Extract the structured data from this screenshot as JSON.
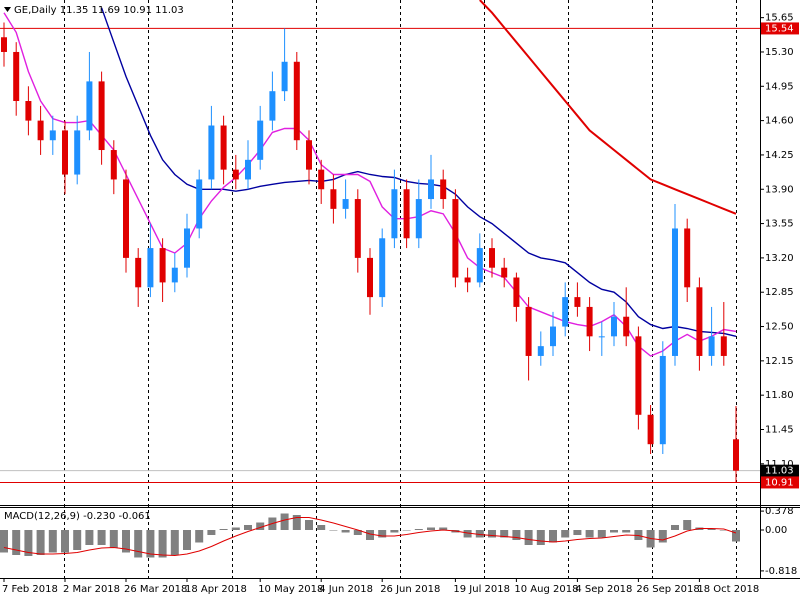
{
  "chart_data": [
    {
      "type": "candlestick",
      "title": "GE,Daily 11.35 11.69 10.91 11.03",
      "categories": [
        "7 Feb 2018",
        null,
        null,
        null,
        null,
        "2 Mar 2018",
        null,
        null,
        null,
        null,
        "26 Mar 2018",
        null,
        null,
        null,
        null,
        "18 Apr 2018",
        null,
        null,
        null,
        null,
        null,
        "10 May 2018",
        null,
        null,
        null,
        null,
        "4 Jun 2018",
        null,
        null,
        null,
        null,
        "26 Jun 2018",
        null,
        null,
        null,
        null,
        null,
        "19 Jul 2018",
        null,
        null,
        null,
        null,
        "10 Aug 2018",
        null,
        null,
        null,
        null,
        "4 Sep 2018",
        null,
        null,
        null,
        null,
        "26 Sep 2018",
        null,
        null,
        null,
        null,
        "18 Oct 2018",
        null,
        null,
        null
      ],
      "open": [
        15.45,
        15.3,
        14.8,
        14.6,
        14.4,
        14.5,
        14.05,
        14.5,
        15.0,
        14.3,
        14.0,
        13.2,
        12.9,
        13.3,
        12.95,
        13.1,
        13.5,
        14.0,
        14.55,
        14.1,
        14.0,
        14.2,
        14.6,
        14.9,
        15.2,
        14.4,
        14.1,
        13.9,
        13.7,
        13.8,
        13.2,
        12.8,
        13.4,
        13.9,
        13.4,
        13.8,
        14.0,
        13.8,
        13.0,
        12.95,
        13.3,
        13.1,
        13.0,
        12.7,
        12.2,
        12.3,
        12.5,
        12.8,
        12.7,
        12.4,
        12.4,
        12.6,
        12.4,
        11.6,
        11.3,
        12.2,
        13.5,
        12.9,
        12.2,
        12.4,
        11.35
      ],
      "high": [
        15.6,
        15.4,
        14.95,
        14.75,
        14.65,
        14.6,
        14.65,
        15.3,
        15.1,
        14.4,
        14.1,
        13.3,
        13.55,
        13.4,
        13.25,
        13.65,
        14.1,
        14.75,
        14.65,
        14.25,
        14.4,
        14.75,
        15.1,
        15.54,
        15.3,
        14.5,
        14.2,
        14.05,
        14.0,
        13.9,
        13.3,
        13.5,
        14.1,
        14.0,
        14.0,
        14.25,
        14.1,
        13.9,
        13.1,
        13.45,
        13.4,
        13.2,
        13.05,
        12.8,
        12.45,
        12.65,
        12.95,
        12.95,
        12.8,
        12.55,
        12.75,
        12.9,
        12.5,
        11.7,
        12.35,
        13.75,
        13.6,
        13.0,
        12.7,
        12.75,
        11.69
      ],
      "low": [
        15.15,
        14.65,
        14.45,
        14.25,
        14.25,
        13.85,
        13.95,
        14.4,
        14.15,
        13.85,
        13.05,
        12.7,
        12.8,
        12.75,
        12.85,
        13.0,
        13.4,
        13.9,
        13.95,
        13.9,
        13.9,
        14.1,
        14.5,
        14.8,
        14.3,
        13.95,
        13.75,
        13.55,
        13.6,
        13.05,
        12.62,
        12.7,
        13.3,
        13.3,
        13.3,
        13.7,
        13.7,
        12.9,
        12.85,
        12.9,
        13.0,
        12.9,
        12.55,
        11.95,
        12.1,
        12.2,
        12.4,
        12.6,
        12.25,
        12.2,
        12.3,
        12.3,
        11.45,
        11.2,
        11.2,
        12.1,
        12.75,
        12.05,
        12.1,
        12.1,
        10.91
      ],
      "close": [
        15.3,
        14.8,
        14.6,
        14.4,
        14.5,
        14.05,
        14.5,
        15.0,
        14.3,
        14.0,
        13.2,
        12.9,
        13.3,
        12.95,
        13.1,
        13.5,
        14.0,
        14.55,
        14.1,
        14.0,
        14.2,
        14.6,
        14.9,
        15.2,
        14.4,
        14.1,
        13.9,
        13.7,
        13.8,
        13.2,
        12.8,
        13.4,
        13.9,
        13.4,
        13.8,
        14.0,
        13.8,
        13.0,
        12.95,
        13.3,
        13.1,
        13.0,
        12.7,
        12.2,
        12.3,
        12.5,
        12.8,
        12.7,
        12.4,
        12.4,
        12.6,
        12.4,
        11.6,
        11.3,
        12.2,
        13.5,
        12.9,
        12.2,
        12.4,
        12.2,
        11.03
      ],
      "up_color": "#1e90ff",
      "down_color": "#e00000",
      "series": [
        {
          "color": "#e00000",
          "values": [
            null,
            null,
            null,
            null,
            null,
            null,
            null,
            null,
            null,
            null,
            null,
            null,
            null,
            null,
            null,
            null,
            null,
            null,
            null,
            null,
            null,
            null,
            null,
            null,
            null,
            null,
            null,
            null,
            null,
            null,
            null,
            null,
            null,
            null,
            null,
            null,
            null,
            null,
            null,
            15.83,
            15.7,
            15.55,
            15.4,
            15.25,
            15.1,
            14.95,
            14.8,
            14.65,
            14.5,
            14.4,
            14.3,
            14.2,
            14.1,
            14.0,
            13.95,
            13.9,
            13.85,
            13.8,
            13.75,
            13.7,
            13.65
          ]
        },
        {
          "color": "#0000a0",
          "values": [
            null,
            null,
            null,
            null,
            null,
            null,
            null,
            null,
            15.75,
            15.4,
            15.05,
            14.75,
            14.45,
            14.2,
            14.05,
            13.95,
            13.9,
            13.9,
            13.9,
            13.88,
            13.9,
            13.93,
            13.95,
            13.97,
            13.98,
            13.99,
            13.98,
            14.0,
            14.05,
            14.08,
            14.05,
            14.03,
            14.02,
            13.98,
            13.96,
            13.95,
            13.93,
            13.85,
            13.72,
            13.62,
            13.55,
            13.45,
            13.35,
            13.25,
            13.2,
            13.18,
            13.15,
            13.05,
            12.95,
            12.88,
            12.85,
            12.75,
            12.6,
            12.52,
            12.48,
            12.5,
            12.48,
            12.45,
            12.44,
            12.43,
            12.4
          ]
        },
        {
          "color": "#e020e0",
          "values": [
            15.7,
            15.5,
            15.1,
            14.8,
            14.62,
            14.58,
            14.58,
            14.6,
            14.45,
            14.3,
            14.05,
            13.8,
            13.55,
            13.3,
            13.25,
            13.35,
            13.6,
            13.78,
            13.92,
            14.02,
            14.15,
            14.3,
            14.48,
            14.52,
            14.52,
            14.4,
            14.15,
            14.05,
            14.05,
            14.05,
            13.98,
            13.72,
            13.6,
            13.6,
            13.62,
            13.68,
            13.65,
            13.45,
            13.2,
            13.1,
            13.05,
            13.0,
            12.85,
            12.7,
            12.65,
            12.6,
            12.55,
            12.52,
            12.5,
            12.55,
            12.62,
            12.5,
            12.3,
            12.2,
            12.25,
            12.35,
            12.42,
            12.35,
            12.4,
            12.47,
            12.45
          ]
        }
      ],
      "ylim": [
        10.68,
        15.83
      ],
      "yticks": [
        15.65,
        {
          "value": 15.3,
          "label": "15.30"
        },
        14.95,
        {
          "value": 14.6,
          "label": "14.60"
        },
        14.25,
        {
          "value": 13.9,
          "label": "13.90"
        },
        13.55,
        {
          "value": 13.2,
          "label": "13.20"
        },
        12.85,
        {
          "value": 12.5,
          "label": "12.50"
        },
        12.15,
        {
          "value": 11.8,
          "label": "11.80"
        },
        11.45,
        {
          "value": 11.1,
          "label": "11.10"
        }
      ],
      "price_lines": [
        {
          "value": 15.54,
          "color": "#e00000"
        },
        {
          "value": 11.03,
          "color": "#000000"
        },
        {
          "value": 10.91,
          "color": "#e00000"
        }
      ]
    },
    {
      "type": "macd",
      "title": "MACD(12,26,9) -0.230 -0.061",
      "histogram": {
        "color": "#808080",
        "values": [
          -0.45,
          -0.5,
          -0.52,
          -0.5,
          -0.45,
          -0.45,
          -0.4,
          -0.3,
          -0.3,
          -0.35,
          -0.45,
          -0.55,
          -0.55,
          -0.55,
          -0.5,
          -0.4,
          -0.25,
          -0.1,
          0.02,
          0.05,
          0.1,
          0.15,
          0.25,
          0.33,
          0.3,
          0.2,
          0.1,
          0.0,
          -0.05,
          -0.1,
          -0.2,
          -0.15,
          -0.05,
          0.0,
          0.02,
          0.05,
          0.05,
          -0.05,
          -0.15,
          -0.15,
          -0.15,
          -0.15,
          -0.2,
          -0.3,
          -0.3,
          -0.25,
          -0.15,
          -0.1,
          -0.15,
          -0.15,
          -0.05,
          -0.05,
          -0.2,
          -0.35,
          -0.25,
          0.1,
          0.2,
          0.05,
          0.02,
          0.0,
          -0.23
        ]
      },
      "signal": {
        "color": "#e00000",
        "values": [
          -0.35,
          -0.4,
          -0.45,
          -0.48,
          -0.48,
          -0.47,
          -0.45,
          -0.4,
          -0.36,
          -0.35,
          -0.38,
          -0.43,
          -0.48,
          -0.5,
          -0.51,
          -0.48,
          -0.42,
          -0.33,
          -0.22,
          -0.12,
          -0.03,
          0.05,
          0.13,
          0.2,
          0.25,
          0.25,
          0.2,
          0.14,
          0.07,
          0.0,
          -0.08,
          -0.12,
          -0.12,
          -0.09,
          -0.05,
          -0.02,
          0.0,
          -0.02,
          -0.06,
          -0.09,
          -0.11,
          -0.13,
          -0.15,
          -0.19,
          -0.22,
          -0.24,
          -0.22,
          -0.19,
          -0.17,
          -0.16,
          -0.13,
          -0.1,
          -0.11,
          -0.17,
          -0.2,
          -0.12,
          -0.02,
          0.03,
          0.03,
          0.02,
          -0.061
        ]
      },
      "ylim": [
        -0.96,
        0.46
      ],
      "yticks": [
        0.378,
        {
          "value": 0,
          "label": "0.00"
        },
        -0.818
      ]
    }
  ]
}
